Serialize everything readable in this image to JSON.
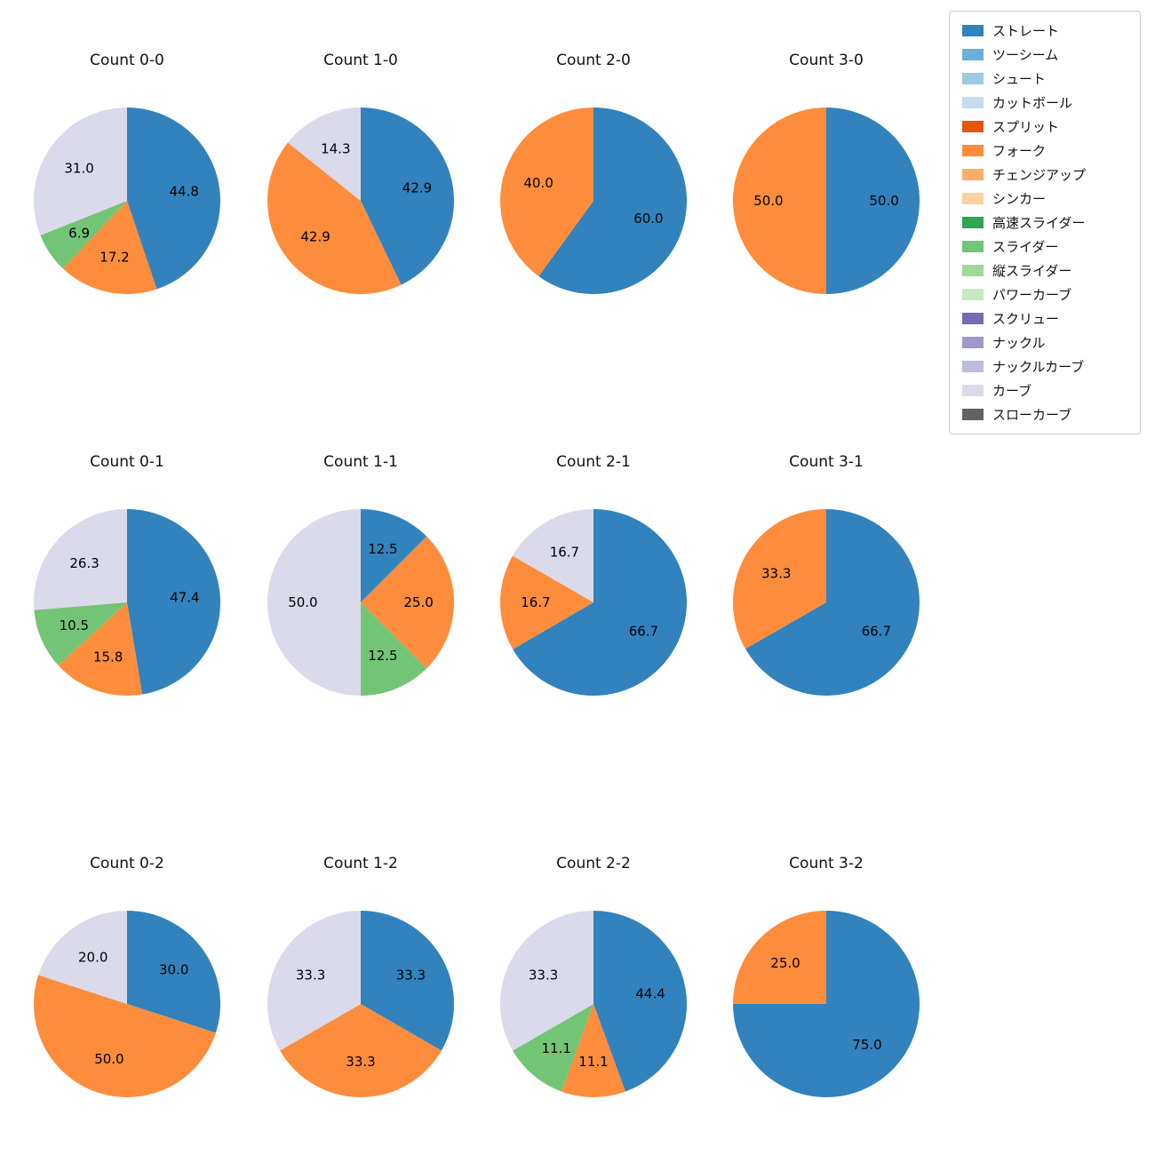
{
  "chart_layout": {
    "grid": "4 columns x 3 rows",
    "start_angle_deg": 90,
    "direction": "clockwise",
    "legend_position": "upper right",
    "percent_label_format": "one_decimal"
  },
  "legend": {
    "items": [
      {
        "label": "ストレート",
        "color": "#3182bd"
      },
      {
        "label": "ツーシーム",
        "color": "#6baed6"
      },
      {
        "label": "シュート",
        "color": "#9ecae1"
      },
      {
        "label": "カットボール",
        "color": "#c6dbef"
      },
      {
        "label": "スプリット",
        "color": "#e6550d"
      },
      {
        "label": "フォーク",
        "color": "#fd8d3c"
      },
      {
        "label": "チェンジアップ",
        "color": "#fdae6b"
      },
      {
        "label": "シンカー",
        "color": "#fdd0a2"
      },
      {
        "label": "高速スライダー",
        "color": "#31a354"
      },
      {
        "label": "スライダー",
        "color": "#74c476"
      },
      {
        "label": "縦スライダー",
        "color": "#a1d99b"
      },
      {
        "label": "パワーカーブ",
        "color": "#c7e9c0"
      },
      {
        "label": "スクリュー",
        "color": "#756bb1"
      },
      {
        "label": "ナックル",
        "color": "#9e9ac8"
      },
      {
        "label": "ナックルカーブ",
        "color": "#bcbddc"
      },
      {
        "label": "カーブ",
        "color": "#dadaeb"
      },
      {
        "label": "スローカーブ",
        "color": "#636363"
      }
    ]
  },
  "chart_data": [
    {
      "type": "pie",
      "title": "Count 0-0",
      "slices": [
        {
          "label": "ストレート",
          "value": 44.8,
          "color": "#3182bd"
        },
        {
          "label": "フォーク",
          "value": 17.2,
          "color": "#fd8d3c"
        },
        {
          "label": "スライダー",
          "value": 6.9,
          "color": "#74c476"
        },
        {
          "label": "カーブ",
          "value": 31.0,
          "color": "#dadaeb"
        }
      ]
    },
    {
      "type": "pie",
      "title": "Count 1-0",
      "slices": [
        {
          "label": "ストレート",
          "value": 42.9,
          "color": "#3182bd"
        },
        {
          "label": "フォーク",
          "value": 42.9,
          "color": "#fd8d3c"
        },
        {
          "label": "カーブ",
          "value": 14.3,
          "color": "#dadaeb"
        }
      ]
    },
    {
      "type": "pie",
      "title": "Count 2-0",
      "slices": [
        {
          "label": "ストレート",
          "value": 60.0,
          "color": "#3182bd"
        },
        {
          "label": "フォーク",
          "value": 40.0,
          "color": "#fd8d3c"
        }
      ]
    },
    {
      "type": "pie",
      "title": "Count 3-0",
      "slices": [
        {
          "label": "ストレート",
          "value": 50.0,
          "color": "#3182bd"
        },
        {
          "label": "フォーク",
          "value": 50.0,
          "color": "#fd8d3c"
        }
      ]
    },
    {
      "type": "pie",
      "title": "Count 0-1",
      "slices": [
        {
          "label": "ストレート",
          "value": 47.4,
          "color": "#3182bd"
        },
        {
          "label": "フォーク",
          "value": 15.8,
          "color": "#fd8d3c"
        },
        {
          "label": "スライダー",
          "value": 10.5,
          "color": "#74c476"
        },
        {
          "label": "カーブ",
          "value": 26.3,
          "color": "#dadaeb"
        }
      ]
    },
    {
      "type": "pie",
      "title": "Count 1-1",
      "slices": [
        {
          "label": "ストレート",
          "value": 12.5,
          "color": "#3182bd"
        },
        {
          "label": "フォーク",
          "value": 25.0,
          "color": "#fd8d3c"
        },
        {
          "label": "スライダー",
          "value": 12.5,
          "color": "#74c476"
        },
        {
          "label": "カーブ",
          "value": 50.0,
          "color": "#dadaeb"
        }
      ]
    },
    {
      "type": "pie",
      "title": "Count 2-1",
      "slices": [
        {
          "label": "ストレート",
          "value": 66.7,
          "color": "#3182bd"
        },
        {
          "label": "フォーク",
          "value": 16.7,
          "color": "#fd8d3c"
        },
        {
          "label": "カーブ",
          "value": 16.7,
          "color": "#dadaeb"
        }
      ]
    },
    {
      "type": "pie",
      "title": "Count 3-1",
      "slices": [
        {
          "label": "ストレート",
          "value": 66.7,
          "color": "#3182bd"
        },
        {
          "label": "フォーク",
          "value": 33.3,
          "color": "#fd8d3c"
        }
      ]
    },
    {
      "type": "pie",
      "title": "Count 0-2",
      "slices": [
        {
          "label": "ストレート",
          "value": 30.0,
          "color": "#3182bd"
        },
        {
          "label": "フォーク",
          "value": 50.0,
          "color": "#fd8d3c"
        },
        {
          "label": "カーブ",
          "value": 20.0,
          "color": "#dadaeb"
        }
      ]
    },
    {
      "type": "pie",
      "title": "Count 1-2",
      "slices": [
        {
          "label": "ストレート",
          "value": 33.3,
          "color": "#3182bd"
        },
        {
          "label": "フォーク",
          "value": 33.3,
          "color": "#fd8d3c"
        },
        {
          "label": "カーブ",
          "value": 33.3,
          "color": "#dadaeb"
        }
      ]
    },
    {
      "type": "pie",
      "title": "Count 2-2",
      "slices": [
        {
          "label": "ストレート",
          "value": 44.4,
          "color": "#3182bd"
        },
        {
          "label": "フォーク",
          "value": 11.1,
          "color": "#fd8d3c"
        },
        {
          "label": "スライダー",
          "value": 11.1,
          "color": "#74c476"
        },
        {
          "label": "カーブ",
          "value": 33.3,
          "color": "#dadaeb"
        }
      ]
    },
    {
      "type": "pie",
      "title": "Count 3-2",
      "slices": [
        {
          "label": "ストレート",
          "value": 75.0,
          "color": "#3182bd"
        },
        {
          "label": "フォーク",
          "value": 25.0,
          "color": "#fd8d3c"
        }
      ]
    }
  ]
}
